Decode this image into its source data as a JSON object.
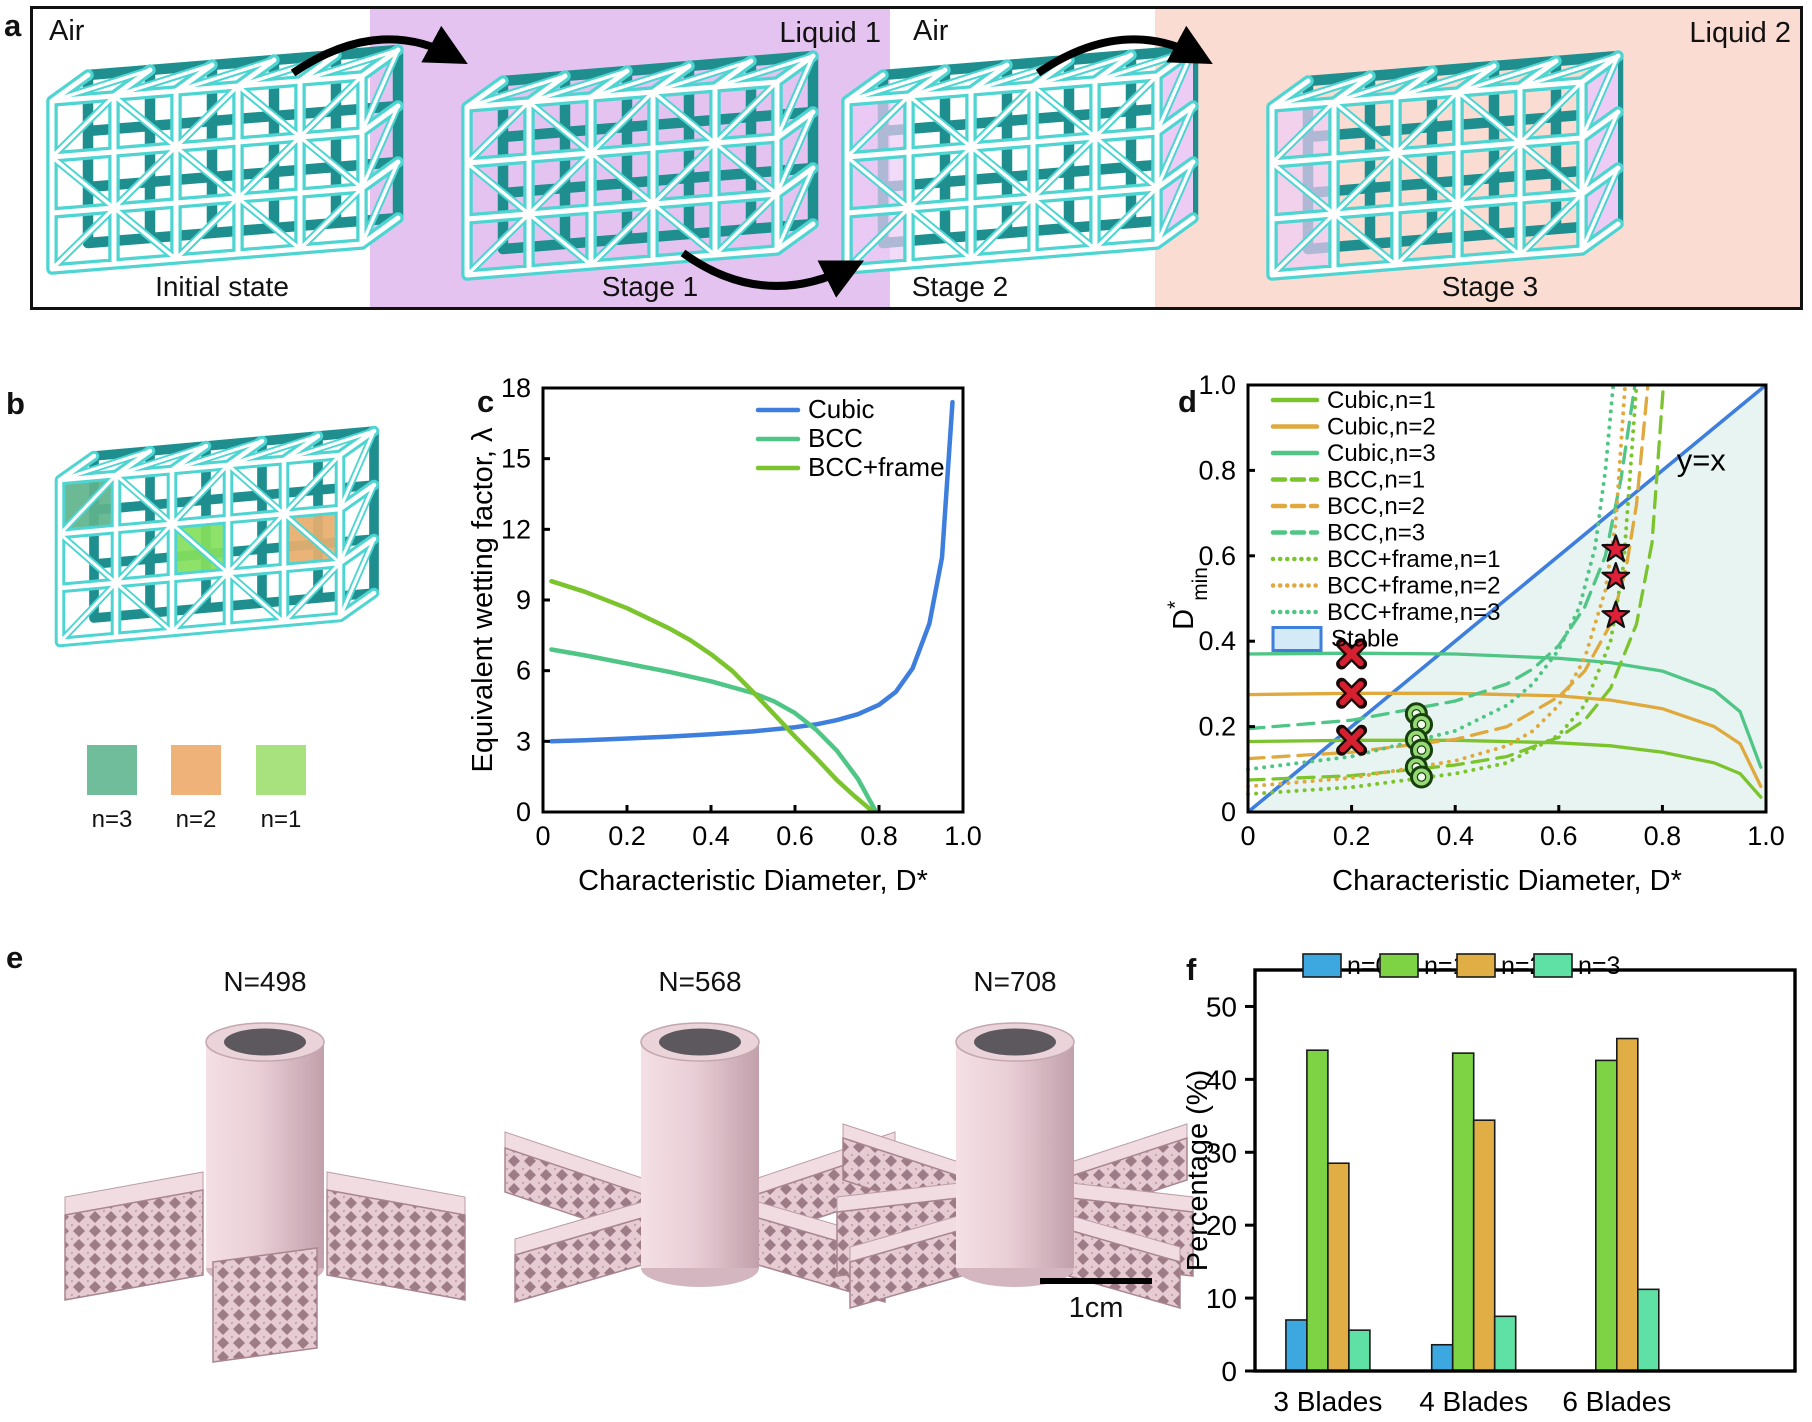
{
  "figure": {
    "panel_labels": {
      "a": "a",
      "b": "b",
      "c": "c",
      "d": "d",
      "e": "e",
      "f": "f"
    }
  },
  "panel_a": {
    "stages": [
      {
        "environment": "Air",
        "caption": "Initial state",
        "bg": "#ffffff"
      },
      {
        "environment": "Liquid 1",
        "caption": "Stage 1",
        "bg": "#e5c3f0"
      },
      {
        "environment": "Air",
        "caption": "Stage 2",
        "bg": "#ffffff"
      },
      {
        "environment": "Liquid 2",
        "caption": "Stage 3",
        "bg": "#fbdcd3"
      }
    ],
    "lattice_colors": {
      "strut": "#4ed5d2",
      "shadow": "#1f8e8e",
      "trapped_liquid": "#ecccf5"
    }
  },
  "panel_b": {
    "legend": [
      {
        "label": "n=3",
        "color": "#6fbd9a"
      },
      {
        "label": "n=2",
        "color": "#efb278"
      },
      {
        "label": "n=1",
        "color": "#a8e27e"
      }
    ],
    "highlight_colors": {
      "n3": "#5fb38d",
      "n1": "#86e05c",
      "n2": "#e8ae6e"
    }
  },
  "panel_e": {
    "items": [
      {
        "title": "N=498"
      },
      {
        "title": "N=568"
      },
      {
        "title": "N=708"
      }
    ],
    "scale_bar": "1cm"
  },
  "chart_data": [
    {
      "id": "c",
      "type": "line",
      "xlabel": "Characteristic Diameter, D*",
      "ylabel": "Equivalent wetting factor, λ",
      "xlim": [
        0,
        1
      ],
      "ylim": [
        0,
        18
      ],
      "xticks": [
        0,
        0.2,
        0.4,
        0.6,
        0.8,
        1.0
      ],
      "xtick_labels": [
        "0",
        "0.2",
        "0.4",
        "0.6",
        "0.8",
        "1.0"
      ],
      "yticks": [
        0,
        3,
        6,
        9,
        12,
        15,
        18
      ],
      "ytick_labels": [
        "0",
        "3",
        "6",
        "9",
        "12",
        "15",
        "18"
      ],
      "grid": false,
      "legend_position": "top-right-inside",
      "series": [
        {
          "name": "Cubic",
          "color": "#3e7edd",
          "style": "solid",
          "x": [
            0.02,
            0.1,
            0.2,
            0.3,
            0.4,
            0.5,
            0.6,
            0.65,
            0.7,
            0.75,
            0.8,
            0.84,
            0.88,
            0.92,
            0.95,
            0.975
          ],
          "y": [
            3.0,
            3.05,
            3.12,
            3.2,
            3.3,
            3.42,
            3.6,
            3.72,
            3.9,
            4.15,
            4.55,
            5.1,
            6.1,
            8.0,
            10.8,
            17.4
          ]
        },
        {
          "name": "BCC",
          "color": "#4fc586",
          "style": "solid",
          "x": [
            0.02,
            0.1,
            0.2,
            0.3,
            0.4,
            0.5,
            0.55,
            0.6,
            0.65,
            0.7,
            0.75,
            0.79
          ],
          "y": [
            6.9,
            6.65,
            6.3,
            5.95,
            5.55,
            5.05,
            4.7,
            4.2,
            3.5,
            2.6,
            1.4,
            0.1
          ]
        },
        {
          "name": "BCC+frame",
          "color": "#7cc42d",
          "style": "solid",
          "x": [
            0.02,
            0.1,
            0.2,
            0.3,
            0.35,
            0.4,
            0.45,
            0.5,
            0.55,
            0.6,
            0.65,
            0.7,
            0.74,
            0.78
          ],
          "y": [
            9.8,
            9.35,
            8.65,
            7.8,
            7.3,
            6.7,
            6.0,
            5.1,
            4.15,
            3.2,
            2.3,
            1.35,
            0.7,
            0.1
          ]
        }
      ]
    },
    {
      "id": "d",
      "type": "line",
      "xlabel": "Characteristic Diameter, D*",
      "ylabel": "D*min",
      "ylabel_rich": {
        "base": "D",
        "sup": "*",
        "sub": "min"
      },
      "xlim": [
        0,
        1
      ],
      "ylim": [
        0,
        1
      ],
      "xticks": [
        0,
        0.2,
        0.4,
        0.6,
        0.8,
        1.0
      ],
      "xtick_labels": [
        "0",
        "0.2",
        "0.4",
        "0.6",
        "0.8",
        "1.0"
      ],
      "yticks": [
        0,
        0.2,
        0.4,
        0.6,
        0.8,
        1.0
      ],
      "ytick_labels": [
        "0",
        "0.2",
        "0.4",
        "0.6",
        "0.8",
        "1.0"
      ],
      "grid": false,
      "legend_position": "top-left-inside",
      "stable_region": {
        "label": "Stable",
        "fill": "#e8f4f1",
        "edge": "#3e7edd",
        "swatch_fill": "#d4eaf6"
      },
      "annotation": {
        "text": "y=x",
        "x": 0.875,
        "y": 0.8
      },
      "series": [
        {
          "name": "Cubic,n=1",
          "color": "#7cc42d",
          "style": "solid",
          "x": [
            0,
            0.2,
            0.4,
            0.6,
            0.7,
            0.8,
            0.9,
            0.95,
            0.99
          ],
          "y": [
            0.165,
            0.168,
            0.168,
            0.162,
            0.155,
            0.14,
            0.115,
            0.09,
            0.035
          ]
        },
        {
          "name": "Cubic,n=2",
          "color": "#dfa93d",
          "style": "solid",
          "x": [
            0,
            0.2,
            0.4,
            0.6,
            0.7,
            0.8,
            0.9,
            0.95,
            0.99
          ],
          "y": [
            0.275,
            0.278,
            0.278,
            0.272,
            0.262,
            0.242,
            0.2,
            0.16,
            0.06
          ]
        },
        {
          "name": "Cubic,n=3",
          "color": "#4fc586",
          "style": "solid",
          "x": [
            0,
            0.2,
            0.4,
            0.6,
            0.7,
            0.8,
            0.9,
            0.95,
            0.99
          ],
          "y": [
            0.37,
            0.372,
            0.37,
            0.36,
            0.35,
            0.33,
            0.285,
            0.235,
            0.105
          ]
        },
        {
          "name": "BCC,n=1",
          "color": "#7cc42d",
          "style": "dashed",
          "x": [
            0,
            0.2,
            0.4,
            0.5,
            0.6,
            0.65,
            0.7,
            0.75,
            0.78,
            0.802
          ],
          "y": [
            0.075,
            0.085,
            0.11,
            0.13,
            0.175,
            0.215,
            0.29,
            0.44,
            0.63,
            1.0
          ]
        },
        {
          "name": "BCC,n=2",
          "color": "#dfa93d",
          "style": "dashed",
          "x": [
            0,
            0.2,
            0.4,
            0.5,
            0.6,
            0.65,
            0.7,
            0.73,
            0.75,
            0.772
          ],
          "y": [
            0.125,
            0.14,
            0.17,
            0.2,
            0.27,
            0.33,
            0.44,
            0.57,
            0.72,
            1.0
          ]
        },
        {
          "name": "BCC,n=3",
          "color": "#4fc586",
          "style": "dashed",
          "x": [
            0,
            0.2,
            0.4,
            0.5,
            0.55,
            0.6,
            0.65,
            0.69,
            0.72,
            0.747
          ],
          "y": [
            0.195,
            0.215,
            0.26,
            0.3,
            0.335,
            0.39,
            0.48,
            0.6,
            0.78,
            1.0
          ]
        },
        {
          "name": "BCC+frame,n=1",
          "color": "#7cc42d",
          "style": "dotted",
          "x": [
            0,
            0.2,
            0.4,
            0.5,
            0.6,
            0.65,
            0.7,
            0.725,
            0.75
          ],
          "y": [
            0.042,
            0.058,
            0.09,
            0.115,
            0.18,
            0.25,
            0.4,
            0.58,
            1.0
          ]
        },
        {
          "name": "BCC+frame,n=2",
          "color": "#dfa93d",
          "style": "dotted",
          "x": [
            0,
            0.2,
            0.4,
            0.5,
            0.55,
            0.6,
            0.65,
            0.69,
            0.71,
            0.728
          ],
          "y": [
            0.06,
            0.08,
            0.12,
            0.155,
            0.19,
            0.25,
            0.36,
            0.52,
            0.68,
            1.0
          ]
        },
        {
          "name": "BCC+frame,n=3",
          "color": "#4fc586",
          "style": "dotted",
          "x": [
            0,
            0.2,
            0.4,
            0.5,
            0.55,
            0.6,
            0.64,
            0.67,
            0.69,
            0.705
          ],
          "y": [
            0.1,
            0.13,
            0.19,
            0.25,
            0.3,
            0.38,
            0.48,
            0.62,
            0.8,
            1.0
          ]
        }
      ],
      "markers": [
        {
          "shape": "x",
          "color": "#d6202f",
          "points": [
            [
              0.2,
              0.37
            ],
            [
              0.2,
              0.278
            ],
            [
              0.2,
              0.168
            ]
          ]
        },
        {
          "shape": "circle",
          "color": "#98d977",
          "points": [
            [
              0.325,
              0.23
            ],
            [
              0.335,
              0.205
            ],
            [
              0.325,
              0.17
            ],
            [
              0.335,
              0.145
            ],
            [
              0.325,
              0.105
            ],
            [
              0.335,
              0.082
            ]
          ]
        },
        {
          "shape": "star",
          "color": "#e02038",
          "points": [
            [
              0.71,
              0.615
            ],
            [
              0.71,
              0.55
            ],
            [
              0.71,
              0.46
            ]
          ]
        }
      ]
    },
    {
      "id": "f",
      "type": "bar",
      "xlabel": "",
      "ylabel": "Percentage (%)",
      "ylim": [
        0,
        55
      ],
      "yticks": [
        0,
        10,
        20,
        30,
        40,
        50
      ],
      "ytick_labels": [
        "0",
        "10",
        "20",
        "30",
        "40",
        "50"
      ],
      "categories": [
        "3 Blades",
        "4 Blades",
        "6 Blades"
      ],
      "legend_position": "top-inside",
      "series": [
        {
          "name": "n=0",
          "color": "#3da8e0",
          "values": [
            7.0,
            3.6,
            0
          ]
        },
        {
          "name": "n=1",
          "color": "#7ed344",
          "values": [
            44.0,
            43.6,
            42.6
          ]
        },
        {
          "name": "n=2",
          "color": "#e0ae45",
          "values": [
            28.5,
            34.4,
            45.6
          ]
        },
        {
          "name": "n=3",
          "color": "#5fe0a5",
          "values": [
            5.6,
            7.5,
            11.2
          ]
        }
      ]
    }
  ]
}
